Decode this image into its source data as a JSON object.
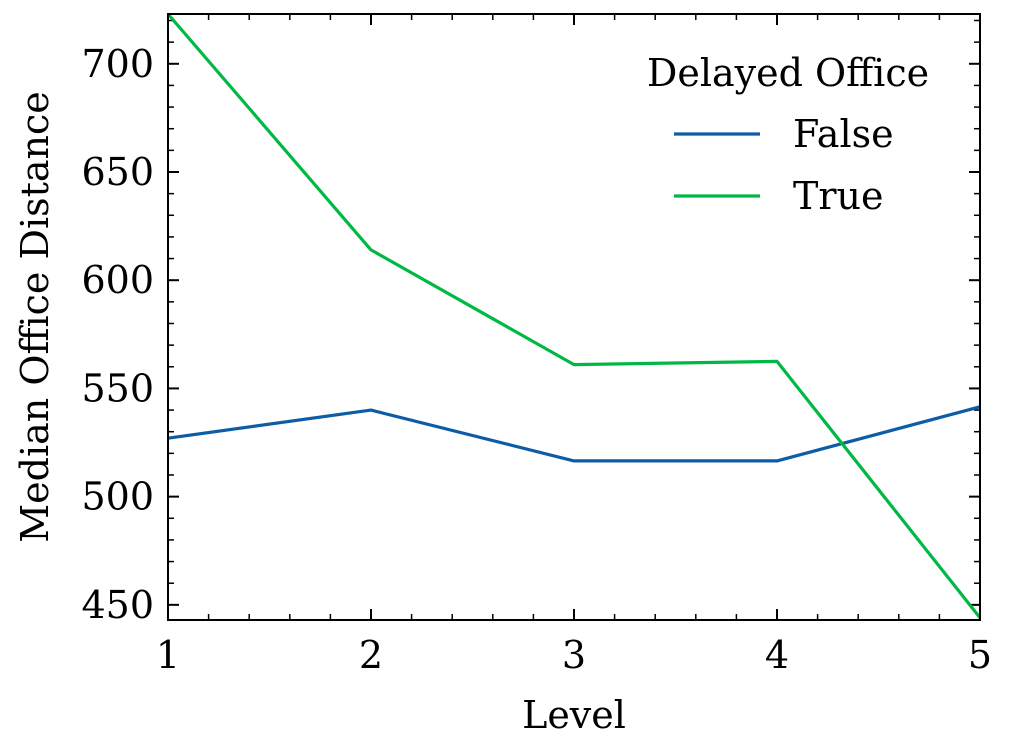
{
  "chart_data": {
    "type": "line",
    "xlabel": "Level",
    "ylabel": "Median Office Distance",
    "x": [
      1,
      2,
      3,
      4,
      5
    ],
    "xlim": [
      1,
      5
    ],
    "ylim": [
      443,
      723
    ],
    "xticks": [
      1,
      2,
      3,
      4,
      5
    ],
    "yticks": [
      450,
      500,
      550,
      600,
      650,
      700
    ],
    "grid": false,
    "legend": {
      "title": "Delayed Office",
      "placement": "top-right"
    },
    "series": [
      {
        "name": "False",
        "color": "#0C5DA5",
        "values": [
          527,
          540,
          516.5,
          516.5,
          541.5
        ]
      },
      {
        "name": "True",
        "color": "#00B945",
        "values": [
          723,
          614,
          561,
          562.5,
          444
        ]
      }
    ]
  }
}
